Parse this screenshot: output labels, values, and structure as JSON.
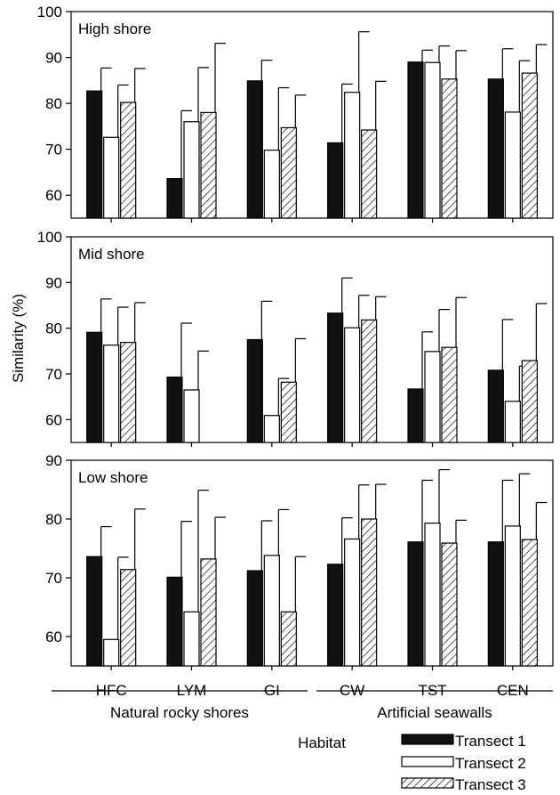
{
  "chart_data": {
    "type": "bar",
    "ylabel": "Similarity (%)",
    "xlabel": "Habitat",
    "categories": [
      "HFC",
      "LYM",
      "GI",
      "CW",
      "TST",
      "CEN"
    ],
    "groups": [
      {
        "label": "Natural rocky shores",
        "categories": [
          "HFC",
          "LYM",
          "GI"
        ]
      },
      {
        "label": "Artificial seawalls",
        "categories": [
          "CW",
          "TST",
          "CEN"
        ]
      }
    ],
    "legend": {
      "placement": "bottom-right",
      "entries": [
        {
          "name": "Transect 1",
          "style": "solid"
        },
        {
          "name": "Transect 2",
          "style": "open"
        },
        {
          "name": "Transect 3",
          "style": "hatched"
        }
      ]
    },
    "panels": [
      {
        "title": "High shore",
        "ylim": [
          55,
          100
        ],
        "yticks": [
          60,
          70,
          80,
          90,
          100
        ],
        "series": [
          {
            "name": "Transect 1",
            "values": [
              82.7,
              63.6,
              84.9,
              71.4,
              89.0,
              85.3
            ],
            "errors": [
              5.0,
              14.8,
              4.5,
              12.8,
              2.6,
              6.6
            ]
          },
          {
            "name": "Transect 2",
            "values": [
              72.6,
              76.0,
              69.8,
              82.4,
              88.9,
              78.1
            ],
            "errors": [
              11.4,
              11.8,
              13.6,
              13.2,
              3.6,
              11.2
            ]
          },
          {
            "name": "Transect 3",
            "values": [
              80.2,
              78.0,
              74.7,
              74.2,
              85.3,
              86.6
            ],
            "errors": [
              7.4,
              15.1,
              7.1,
              10.6,
              6.2,
              6.2
            ]
          }
        ]
      },
      {
        "title": "Mid shore",
        "ylim": [
          55,
          100
        ],
        "yticks": [
          60,
          70,
          80,
          90,
          100
        ],
        "series": [
          {
            "name": "Transect 1",
            "values": [
              79.1,
              69.3,
              77.5,
              83.3,
              66.7,
              70.8
            ],
            "errors": [
              7.3,
              11.8,
              8.4,
              7.7,
              12.5,
              11.1
            ]
          },
          {
            "name": "Transect 2",
            "values": [
              76.3,
              66.5,
              60.9,
              80.1,
              74.9,
              64.0
            ],
            "errors": [
              8.3,
              8.5,
              8.1,
              7.1,
              9.2,
              7.7
            ]
          },
          {
            "name": "Transect 3",
            "values": [
              76.9,
              null,
              68.2,
              81.8,
              75.8,
              72.9
            ],
            "errors": [
              8.7,
              null,
              9.5,
              5.1,
              10.9,
              12.5
            ]
          }
        ]
      },
      {
        "title": "Low shore",
        "ylim": [
          55,
          90
        ],
        "yticks": [
          60,
          70,
          80,
          90
        ],
        "series": [
          {
            "name": "Transect 1",
            "values": [
              73.6,
              70.1,
              71.2,
              72.3,
              76.1,
              76.1
            ],
            "errors": [
              5.1,
              9.5,
              8.5,
              7.9,
              10.5,
              10.5
            ]
          },
          {
            "name": "Transect 2",
            "values": [
              59.5,
              64.2,
              73.8,
              76.6,
              79.3,
              78.8
            ],
            "errors": [
              14.0,
              20.7,
              7.8,
              9.2,
              9.1,
              8.9
            ]
          },
          {
            "name": "Transect 3",
            "values": [
              71.4,
              73.2,
              64.2,
              80.0,
              75.9,
              76.5
            ],
            "errors": [
              10.3,
              7.1,
              9.4,
              5.9,
              3.9,
              6.3
            ]
          }
        ]
      }
    ]
  }
}
